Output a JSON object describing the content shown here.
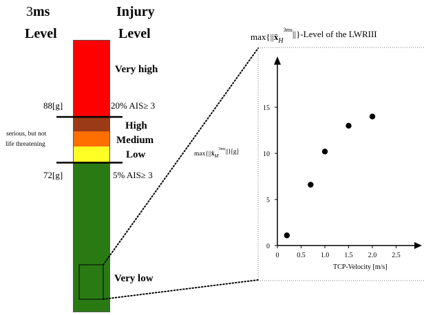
{
  "left_header": {
    "title_prefix": "3",
    "title_suffix": "ms",
    "title_line2": "Level"
  },
  "right_header": {
    "line1": "Injury",
    "line2": "Level"
  },
  "scale": {
    "bands": [
      {
        "key": "very-high",
        "label": "Very high",
        "color": "#ff0000"
      },
      {
        "key": "high",
        "label": "High",
        "color": "#9a3a16"
      },
      {
        "key": "medium",
        "label": "Medium",
        "color": "#ff6f00"
      },
      {
        "key": "low",
        "label": "Low",
        "color": "#ffff26"
      },
      {
        "key": "very-low",
        "label": "Very low",
        "color": "#2a7a14"
      }
    ],
    "upper_threshold": {
      "left_label": "88[g]",
      "right_label": "20% AIS≥ 3"
    },
    "lower_threshold": {
      "left_label": "72[g]",
      "right_label": "5% AIS≥ 3"
    },
    "middle_note": {
      "line1": "serious, but not",
      "line2": "life threatening"
    }
  },
  "chart_data": {
    "type": "scatter",
    "title": "max{||ẍ_H^3ms||}-Level of the LWRIII",
    "xlabel": "TCP-Velocity [m/s]",
    "ylabel": "max{||ẍ_M^3ms||}[g]",
    "xlim": [
      0,
      2.8
    ],
    "ylim": [
      0,
      17
    ],
    "xticks": [
      "0",
      "0.5",
      "1.0",
      "1.5",
      "2.0",
      "2.5"
    ],
    "xtick_values": [
      0,
      0.5,
      1.0,
      1.5,
      2.0,
      2.5
    ],
    "yticks": [
      "0",
      "5",
      "10",
      "15"
    ],
    "ytick_values": [
      0,
      5,
      10,
      15
    ],
    "grid": false,
    "points": [
      {
        "x": 0.2,
        "y": 1.1
      },
      {
        "x": 0.7,
        "y": 6.6
      },
      {
        "x": 1.0,
        "y": 10.2
      },
      {
        "x": 1.5,
        "y": 13.0
      },
      {
        "x": 2.0,
        "y": 14.0
      }
    ]
  }
}
